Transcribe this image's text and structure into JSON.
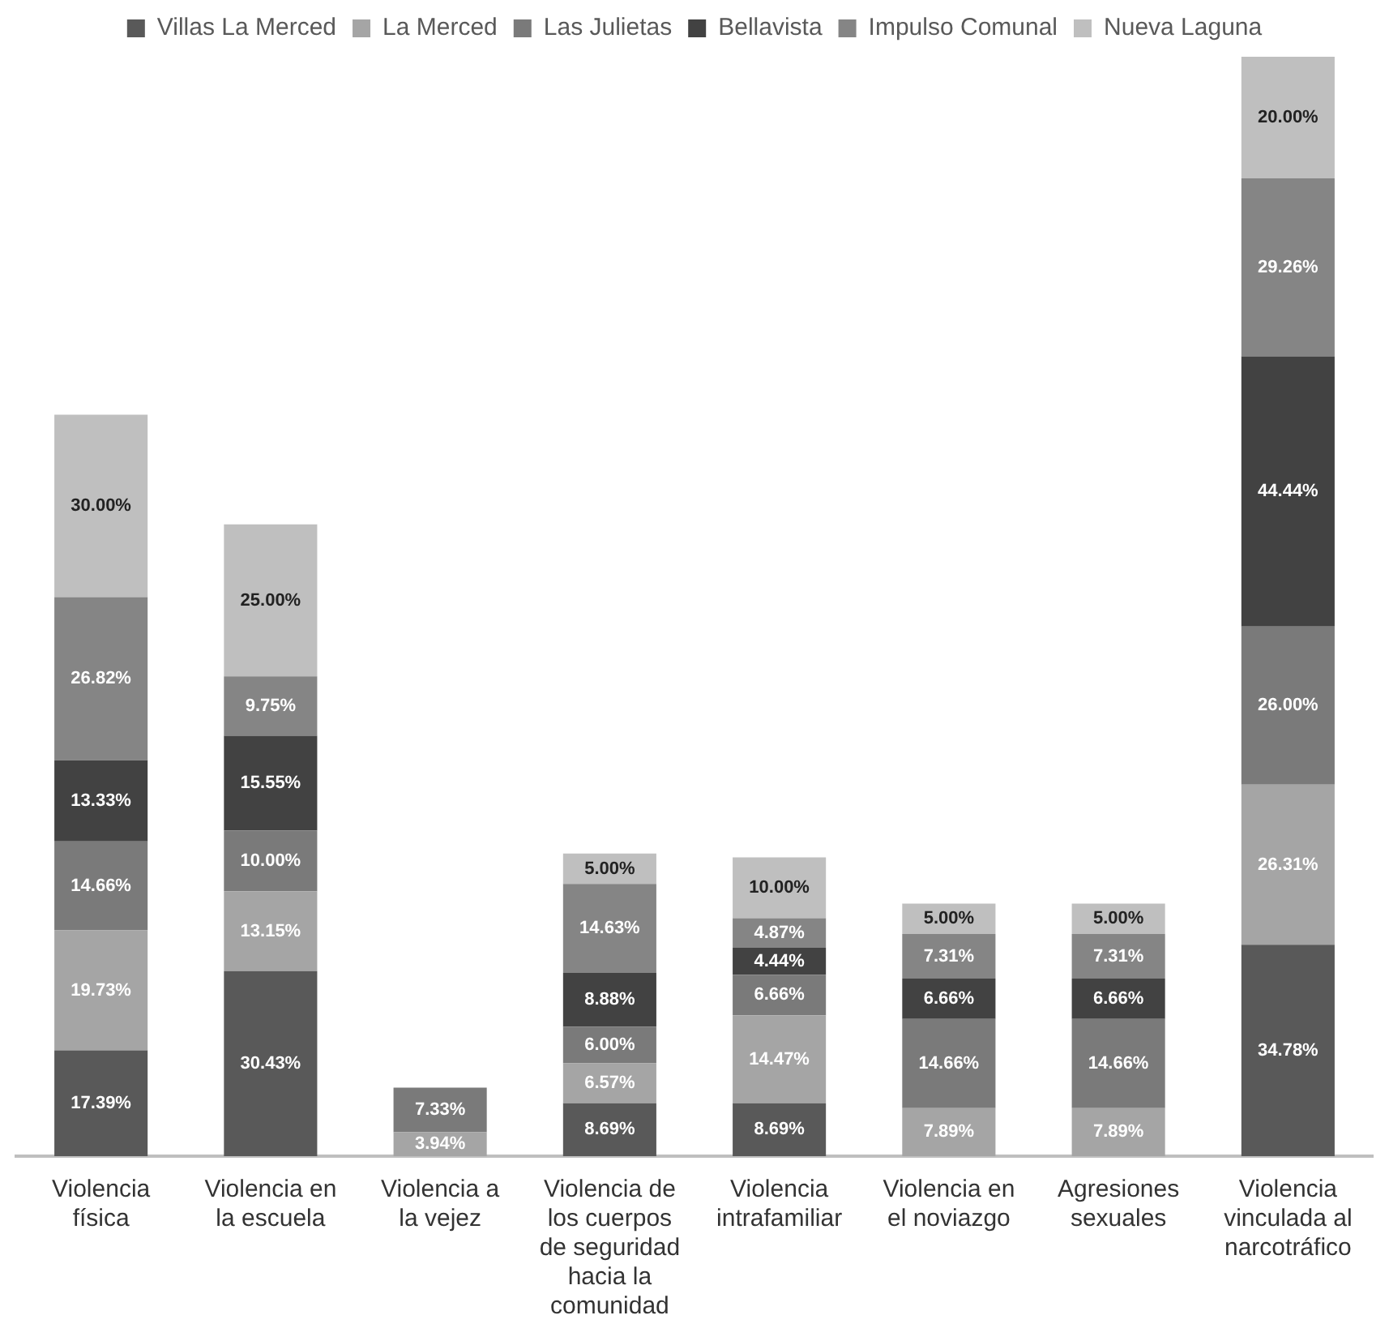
{
  "chart_data": {
    "type": "bar",
    "stacked": true,
    "legend": "top",
    "categories": [
      "Violencia física",
      "Violencia en la escuela",
      "Violencia a la vejez",
      "Violencia de los cuerpos de seguridad hacia la comunidad",
      "Violencia intrafamiliar",
      "Violencia en el noviazgo",
      "Agresiones sexuales",
      "Violencia vinculada al narcotráfico"
    ],
    "series": [
      {
        "name": "Villas La Merced",
        "color": "#595959",
        "values": [
          17.39,
          30.43,
          null,
          8.69,
          8.69,
          null,
          null,
          34.78
        ],
        "value_labels": [
          "17.39%",
          "30.43%",
          null,
          "8.69%",
          "8.69%",
          null,
          null,
          "34.78%"
        ]
      },
      {
        "name": "La Merced",
        "color": "#a5a5a5",
        "values": [
          19.73,
          13.15,
          3.94,
          6.57,
          14.47,
          7.89,
          7.89,
          26.31
        ],
        "value_labels": [
          "19.73%",
          "13.15%",
          "3.94%",
          "6.57%",
          "14.47%",
          "7.89%",
          "7.89%",
          "26.31%"
        ]
      },
      {
        "name": "Las Julietas",
        "color": "#7a7a7a",
        "values": [
          14.66,
          10.0,
          7.33,
          6.0,
          6.66,
          14.66,
          14.66,
          26.0
        ],
        "value_labels": [
          "14.66%",
          "10.00%",
          "7.33%",
          "6.00%",
          "6.66%",
          "14.66%",
          "14.66%",
          "26.00%"
        ]
      },
      {
        "name": "Bellavista",
        "color": "#424242",
        "values": [
          13.33,
          15.55,
          null,
          8.88,
          4.44,
          6.66,
          6.66,
          44.44
        ],
        "value_labels": [
          "13.33%",
          "15.55%",
          null,
          "8.88%",
          "4.44%",
          "6.66%",
          "6.66%",
          "44.44%"
        ]
      },
      {
        "name": "Impulso Comunal",
        "color": "#858585",
        "values": [
          26.82,
          9.75,
          null,
          14.63,
          4.87,
          7.31,
          7.31,
          29.26
        ],
        "value_labels": [
          "26.82%",
          "9.75%",
          null,
          "14.63%",
          "4.87%",
          "7.31%",
          "7.31%",
          "29.26%"
        ]
      },
      {
        "name": "Nueva Laguna",
        "color": "#bfbfbf",
        "values": [
          30.0,
          25.0,
          null,
          5.0,
          10.0,
          5.0,
          5.0,
          20.0
        ],
        "value_labels": [
          "30.00%",
          "25.00%",
          null,
          "5.00%",
          "10.00%",
          "5.00%",
          "5.00%",
          "20.00%"
        ]
      }
    ]
  }
}
